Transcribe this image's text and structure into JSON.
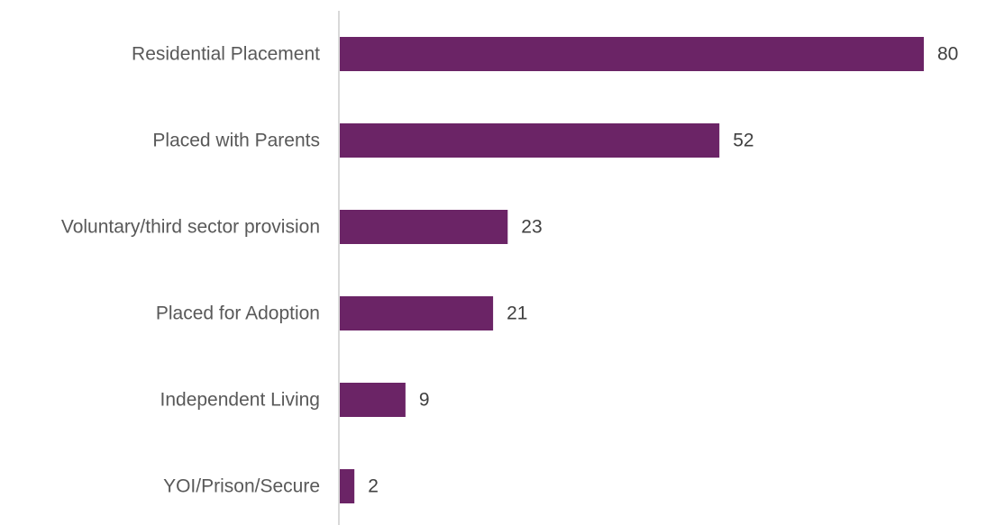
{
  "chart_data": {
    "type": "bar",
    "orientation": "horizontal",
    "title": "",
    "xlabel": "",
    "ylabel": "",
    "categories": [
      "Residential Placement",
      "Placed with Parents",
      "Voluntary/third sector provision",
      "Placed for Adoption",
      "Independent Living",
      "YOI/Prison/Secure"
    ],
    "values": [
      80,
      52,
      23,
      21,
      9,
      2
    ],
    "data_labels": [
      "80",
      "52",
      "23",
      "21",
      "9",
      "2"
    ],
    "xlim": [
      0,
      80
    ],
    "grid": false,
    "legend": "none",
    "bar_color": "#6b2466",
    "axis_color": "#d9d9d9"
  }
}
